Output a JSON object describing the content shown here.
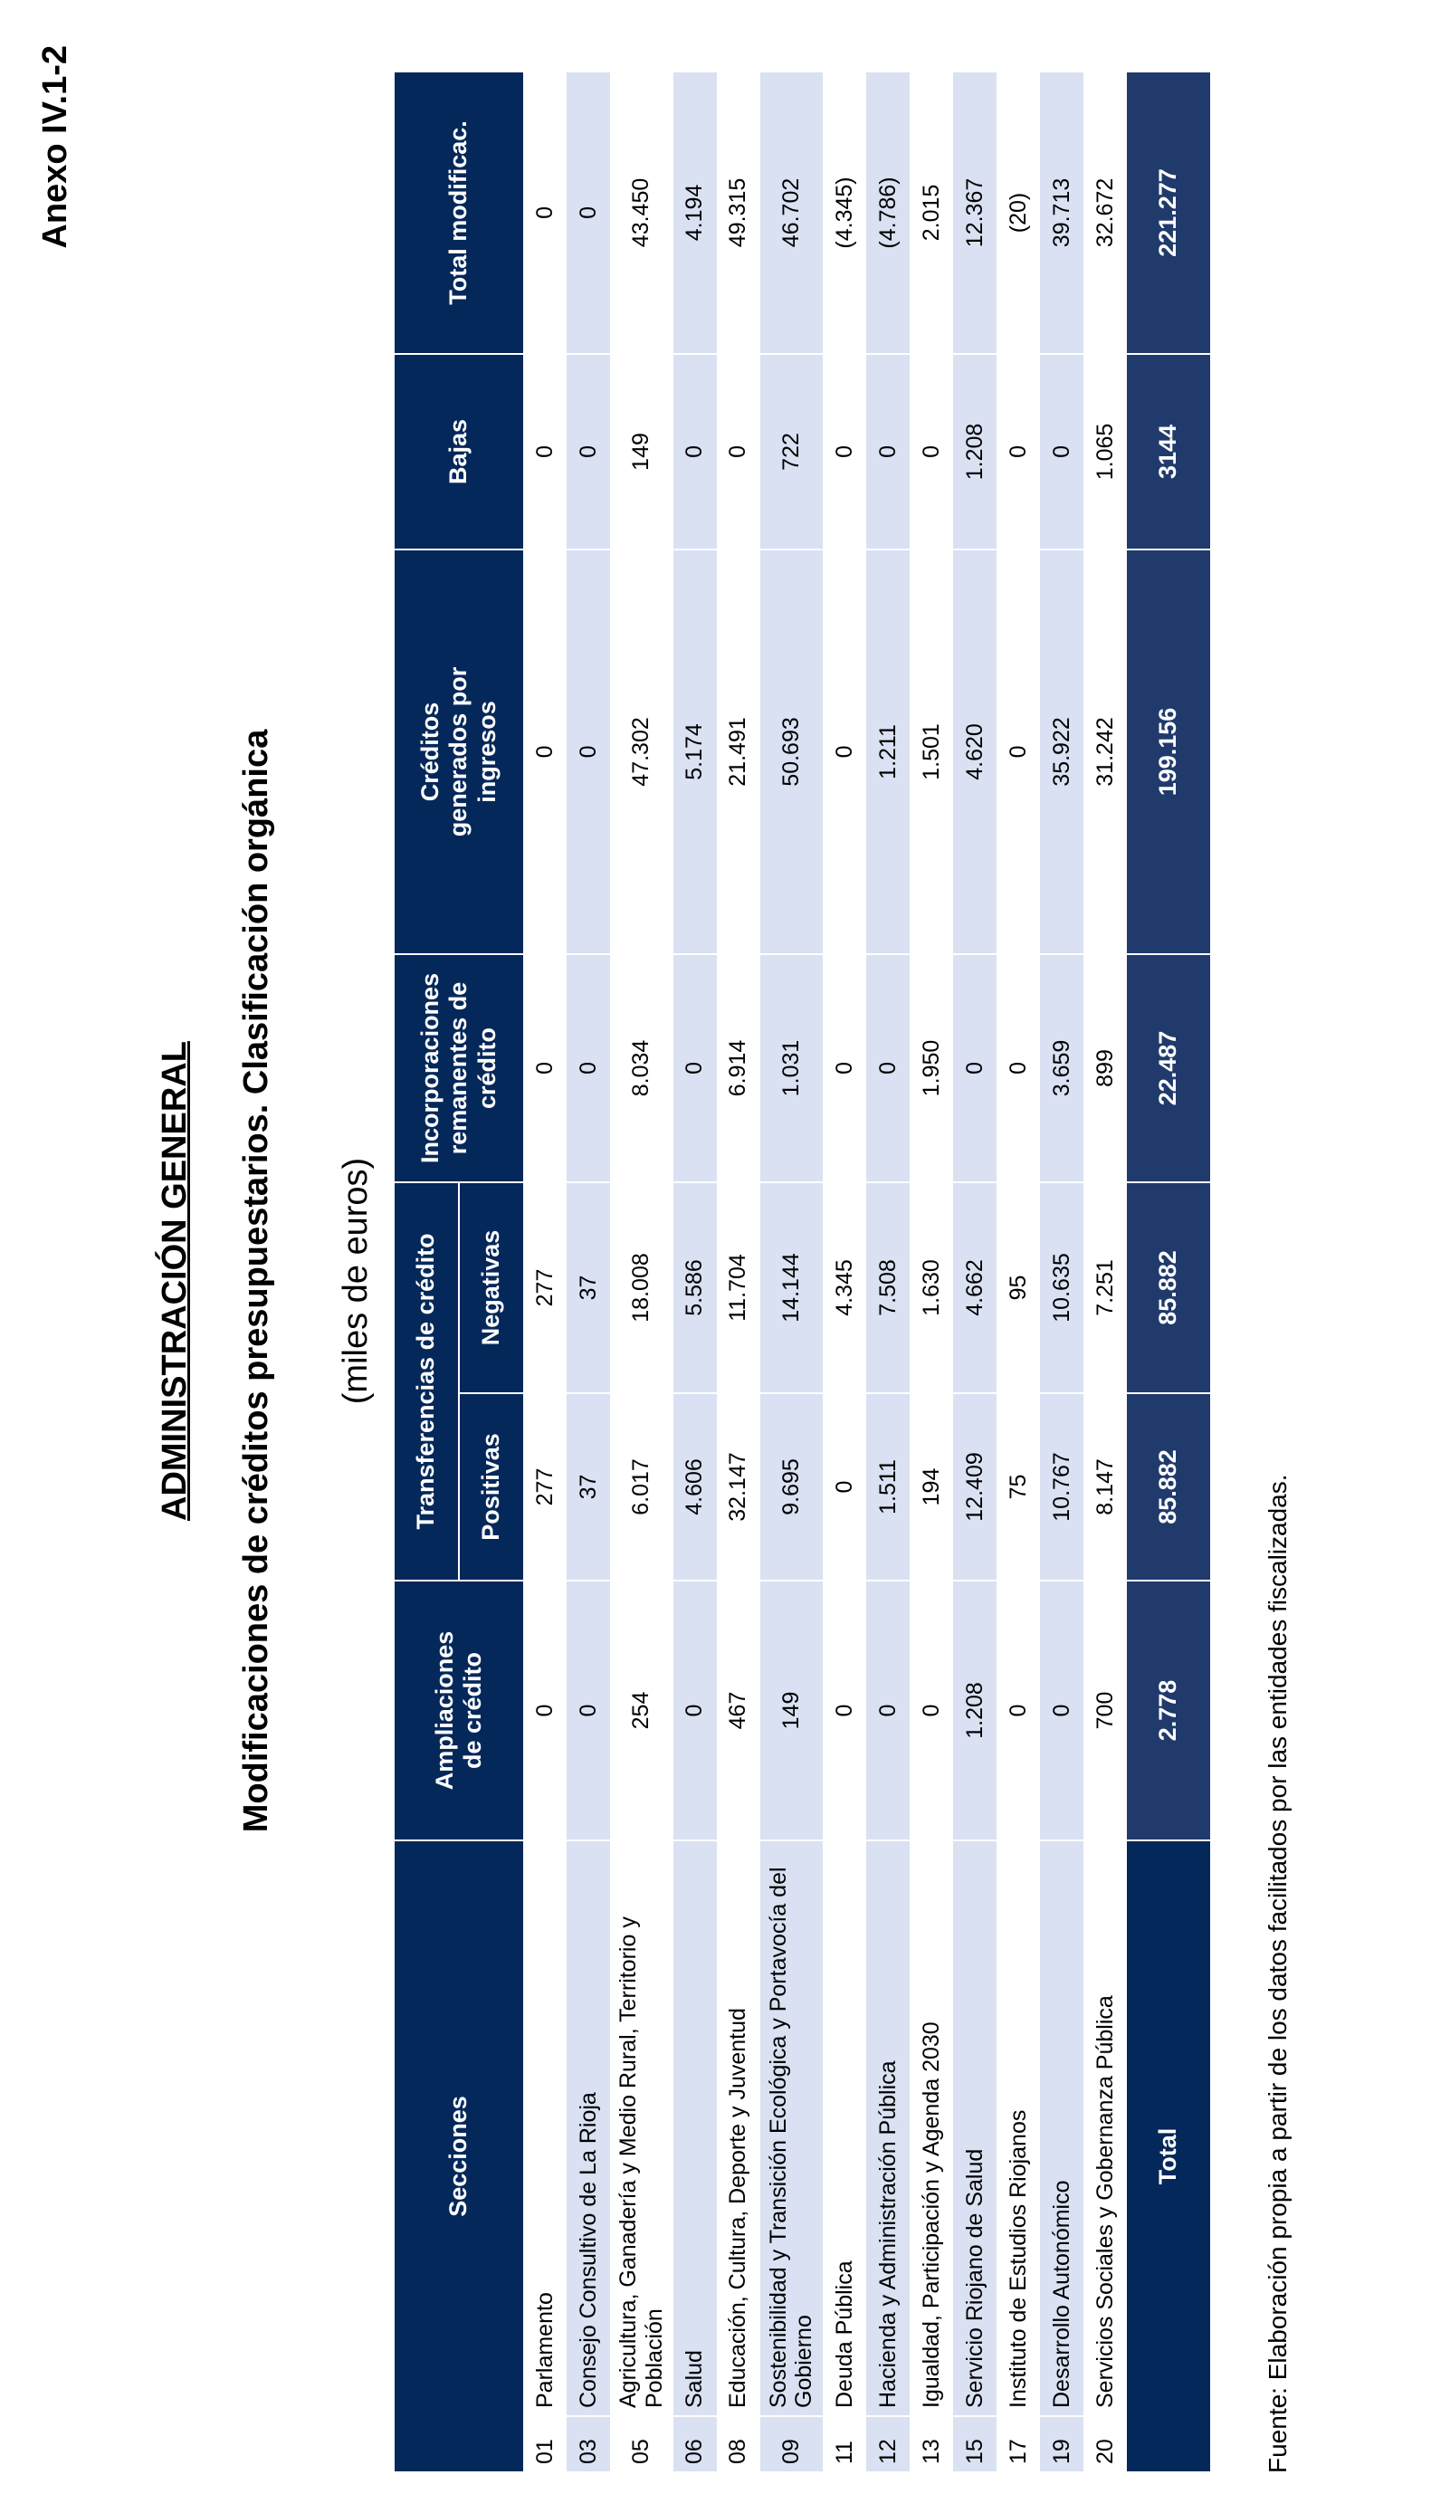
{
  "annex": "Anexo IV.1-2",
  "title": "ADMINISTRACIÓN GENERAL",
  "subtitle": "Modificaciones de créditos presupuestarios. Clasificación orgánica",
  "units": "(miles de euros)",
  "table": {
    "headers": {
      "sections": "Secciones",
      "ampliaciones": "Ampliaciones de crédito",
      "transferencias": "Transferencias de crédito",
      "positivas": "Positivas",
      "negativas": "Negativas",
      "incorporaciones": "Incorporaciones remanentes de crédito",
      "generados": "Créditos generados por ingresos",
      "bajas": "Bajas",
      "total": "Total modificac."
    },
    "rows": [
      [
        "01",
        "Parlamento",
        "0",
        "277",
        "277",
        "0",
        "0",
        "0",
        "0"
      ],
      [
        "03",
        "Consejo Consultivo de La Rioja",
        "0",
        "37",
        "37",
        "0",
        "0",
        "0",
        "0"
      ],
      [
        "05",
        "Agricultura, Ganadería y Medio Rural, Territorio y Población",
        "254",
        "6.017",
        "18.008",
        "8.034",
        "47.302",
        "149",
        "43.450"
      ],
      [
        "06",
        "Salud",
        "0",
        "4.606",
        "5.586",
        "0",
        "5.174",
        "0",
        "4.194"
      ],
      [
        "08",
        "Educación, Cultura, Deporte y Juventud",
        "467",
        "32.147",
        "11.704",
        "6.914",
        "21.491",
        "0",
        "49.315"
      ],
      [
        "09",
        "Sostenibilidad y Transición Ecológica y Portavocía del Gobierno",
        "149",
        "9.695",
        "14.144",
        "1.031",
        "50.693",
        "722",
        "46.702"
      ],
      [
        "11",
        "Deuda Pública",
        "0",
        "0",
        "4.345",
        "0",
        "0",
        "0",
        "(4.345)"
      ],
      [
        "12",
        "Hacienda y Administración Pública",
        "0",
        "1.511",
        "7.508",
        "0",
        "1.211",
        "0",
        "(4.786)"
      ],
      [
        "13",
        "Igualdad, Participación y Agenda 2030",
        "0",
        "194",
        "1.630",
        "1.950",
        "1.501",
        "0",
        "2.015"
      ],
      [
        "15",
        "Servicio Riojano de Salud",
        "1.208",
        "12.409",
        "4.662",
        "0",
        "4.620",
        "1.208",
        "12.367"
      ],
      [
        "17",
        "Instituto de Estudios Riojanos",
        "0",
        "75",
        "95",
        "0",
        "0",
        "0",
        "(20)"
      ],
      [
        "19",
        "Desarrollo Autonómico",
        "0",
        "10.767",
        "10.635",
        "3.659",
        "35.922",
        "0",
        "39.713"
      ],
      [
        "20",
        "Servicios Sociales y Gobernanza Pública",
        "700",
        "8.147",
        "7.251",
        "899",
        "31.242",
        "1.065",
        "32.672"
      ]
    ],
    "total": [
      "Total",
      "2.778",
      "85.882",
      "85.882",
      "22.487",
      "199.156",
      "3144",
      "221.277"
    ]
  },
  "footnote": "Fuente: Elaboración propia a partir de los datos facilitados por las entidades fiscalizadas."
}
